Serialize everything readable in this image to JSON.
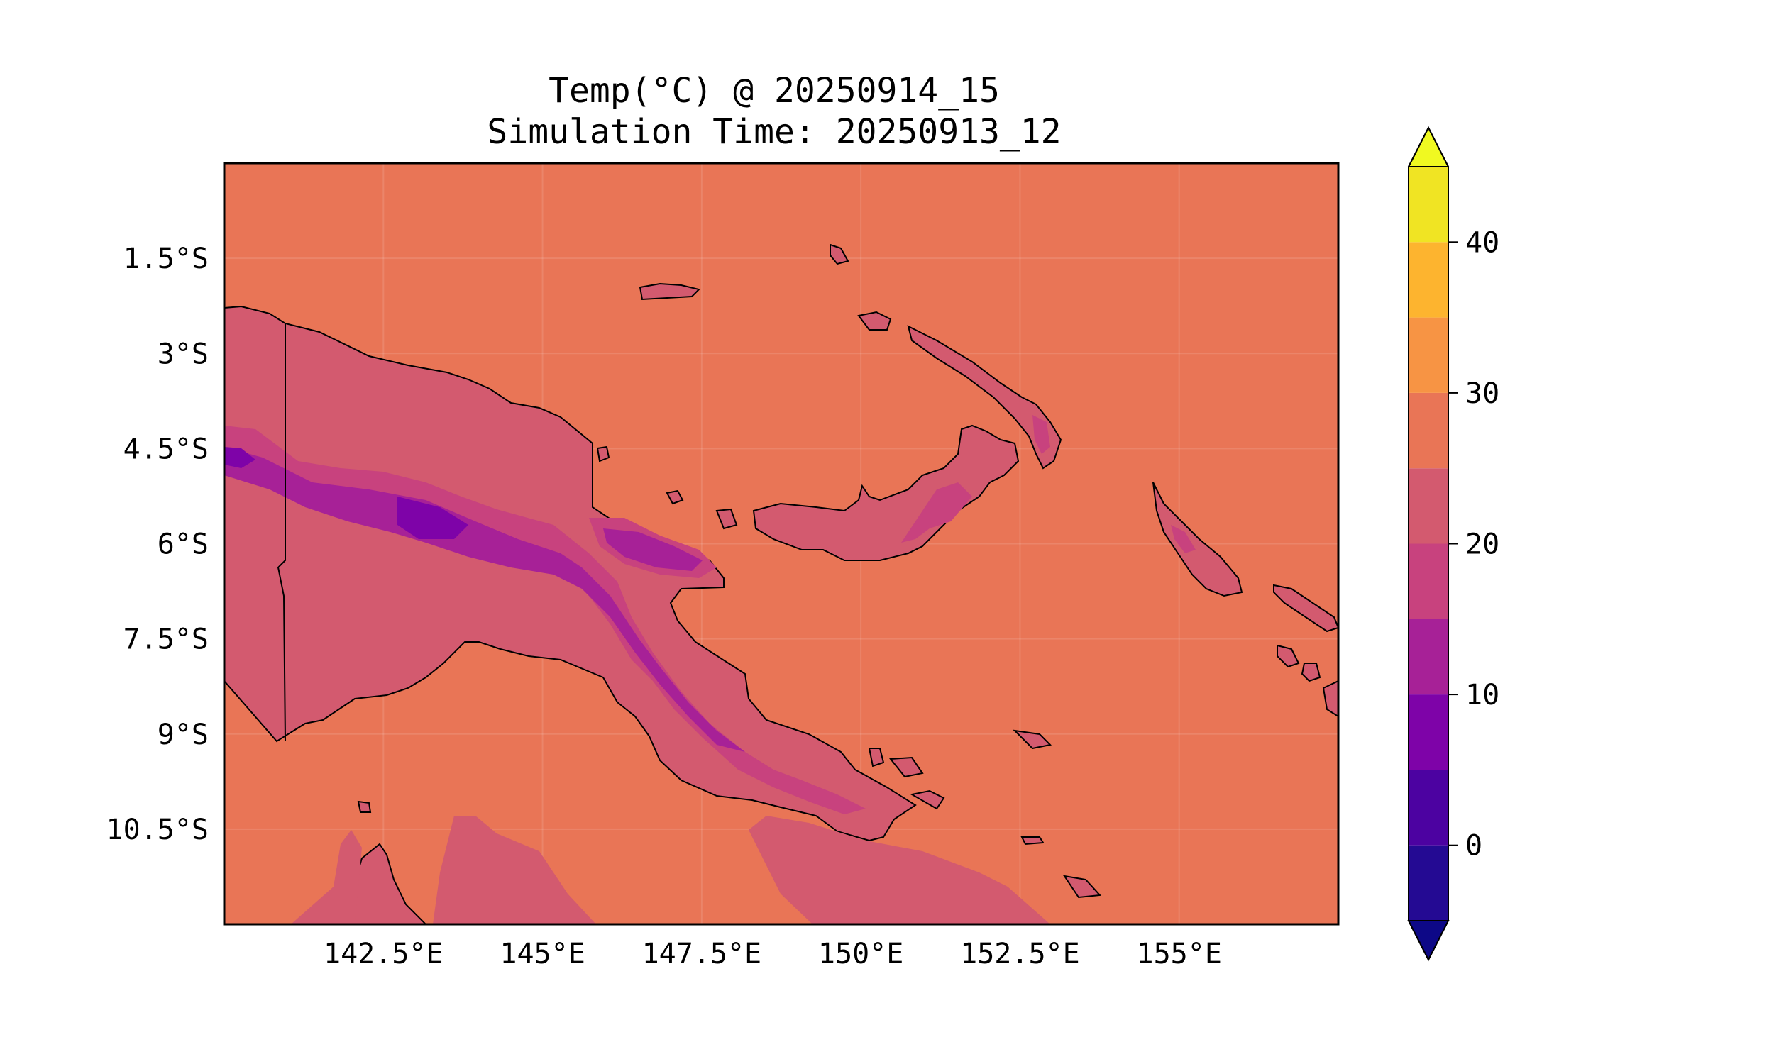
{
  "figure": {
    "title": "Temp(°C) @ 20250914_15",
    "subtitle": "Simulation Time: 20250913_12"
  },
  "map": {
    "lon_range": [
      140,
      157.5
    ],
    "lat_range": [
      -12.0,
      0.0
    ],
    "lon_ticks": [
      {
        "value": 142.5,
        "label": "142.5°E"
      },
      {
        "value": 145,
        "label": "145°E"
      },
      {
        "value": 147.5,
        "label": "147.5°E"
      },
      {
        "value": 150,
        "label": "150°E"
      },
      {
        "value": 152.5,
        "label": "152.5°E"
      },
      {
        "value": 155,
        "label": "155°E"
      }
    ],
    "lat_ticks": [
      {
        "value": -1.5,
        "label": "1.5°S"
      },
      {
        "value": -3,
        "label": "3°S"
      },
      {
        "value": -4.5,
        "label": "4.5°S"
      },
      {
        "value": -6,
        "label": "6°S"
      },
      {
        "value": -7.5,
        "label": "7.5°S"
      },
      {
        "value": -9,
        "label": "9°S"
      },
      {
        "value": -10.5,
        "label": "10.5°S"
      }
    ],
    "background_level_color": "#e97556",
    "gridlines": true
  },
  "colorbar": {
    "levels": [
      -5,
      0,
      5,
      10,
      15,
      20,
      25,
      30,
      35,
      40,
      45
    ],
    "colors": [
      "#240a93",
      "#4c02a1",
      "#7e03a8",
      "#a72197",
      "#c8427e",
      "#d35a6f",
      "#e97556",
      "#f79444",
      "#fdb42f",
      "#f0e423"
    ],
    "under_color": "#0d0887",
    "over_color": "#f0f921",
    "tick_labels": [
      {
        "value": 0,
        "label": "0"
      },
      {
        "value": 10,
        "label": "10"
      },
      {
        "value": 20,
        "label": "20"
      },
      {
        "value": 30,
        "label": "30"
      },
      {
        "value": 40,
        "label": "40"
      }
    ],
    "extend": "both"
  }
}
